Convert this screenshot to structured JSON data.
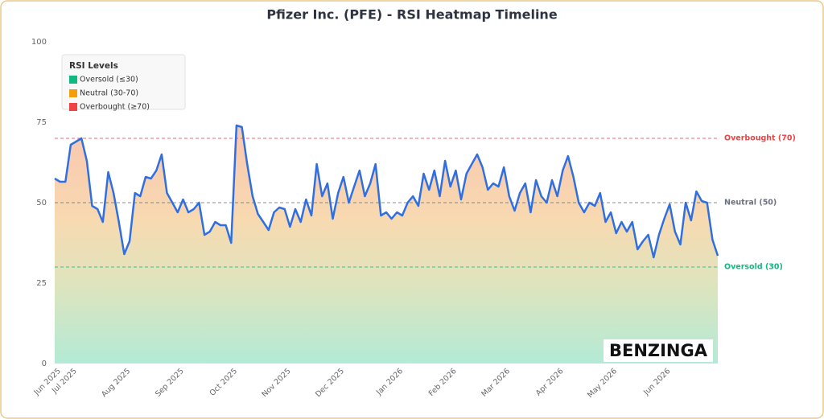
{
  "chart_data": {
    "type": "line",
    "title": "Pfizer Inc. (PFE) - RSI Heatmap Timeline",
    "categories": [
      "Jun 2025",
      null,
      null,
      "Jul 2025",
      null,
      null,
      null,
      null,
      null,
      null,
      null,
      null,
      null,
      "Aug 2025",
      null,
      null,
      null,
      null,
      null,
      null,
      null,
      null,
      null,
      "Sep 2025",
      null,
      null,
      null,
      null,
      null,
      null,
      null,
      null,
      null,
      "Oct 2025",
      null,
      null,
      null,
      null,
      null,
      null,
      null,
      null,
      null,
      "Nov 2025",
      null,
      null,
      null,
      null,
      null,
      null,
      null,
      null,
      null,
      "Dec 2025",
      null,
      null,
      null,
      null,
      null,
      null,
      null,
      null,
      null,
      null,
      "Jan 2026",
      null,
      null,
      null,
      null,
      null,
      null,
      null,
      null,
      null,
      "Feb 2026",
      null,
      null,
      null,
      null,
      null,
      null,
      null,
      null,
      null,
      "Mar 2026",
      null,
      null,
      null,
      null,
      null,
      null,
      null,
      null,
      null,
      "Apr 2026",
      null,
      null,
      null,
      null,
      null,
      null,
      null,
      null,
      null,
      "May 2026",
      null,
      null,
      null,
      null,
      null,
      null,
      null,
      null,
      null,
      "Jun 2026",
      null,
      null,
      null,
      null,
      null,
      null,
      null,
      null,
      null,
      null
    ],
    "values": [
      57.5,
      56.5,
      56.5,
      68,
      69,
      70,
      63,
      49,
      48,
      44,
      59.5,
      53,
      44,
      34,
      38,
      53,
      52,
      58,
      57.5,
      60,
      65,
      53,
      50,
      47,
      51,
      47,
      48,
      50,
      40,
      41,
      44,
      43,
      43,
      37.5,
      74,
      73.5,
      62,
      52,
      46.5,
      44,
      41.5,
      47,
      48.5,
      48,
      42.5,
      48,
      44,
      51,
      46,
      62,
      52,
      56,
      45,
      53,
      58,
      50,
      55,
      60,
      52,
      56,
      62,
      46,
      47,
      45,
      47,
      46,
      50,
      52,
      49,
      59,
      54,
      60,
      52,
      63,
      55,
      60,
      51,
      59,
      62,
      65,
      61,
      54,
      56,
      55,
      61,
      52,
      47.5,
      53,
      56,
      47,
      57,
      52,
      50,
      57,
      52,
      60,
      64.5,
      58,
      50,
      47,
      50,
      49,
      53,
      44,
      47,
      40.5,
      44,
      41,
      44,
      35.5,
      38,
      40,
      33,
      40,
      45,
      49.5,
      41,
      37,
      50,
      44.5,
      53.5,
      50.5,
      50,
      38.5,
      33.5
    ],
    "color": "#2f6fe0",
    "ylim": [
      0,
      100
    ],
    "yticks": [
      0,
      25,
      50,
      75,
      100
    ],
    "grid": false,
    "reference_lines": [
      {
        "value": 70,
        "label": "Overbought (70)",
        "color": "#ef4444"
      },
      {
        "value": 50,
        "label": "Neutral (50)",
        "color": "#6b7280"
      },
      {
        "value": 30,
        "label": "Oversold (30)",
        "color": "#10b981"
      }
    ],
    "legend": {
      "title": "RSI Levels",
      "position": "upper left",
      "items": [
        {
          "label": "Oversold (≤30)",
          "color": "#10b981"
        },
        {
          "label": "Neutral (30-70)",
          "color": "#f59e0b"
        },
        {
          "label": "Overbought (≥70)",
          "color": "#ef4444"
        }
      ]
    },
    "watermark": "BENZINGA"
  }
}
